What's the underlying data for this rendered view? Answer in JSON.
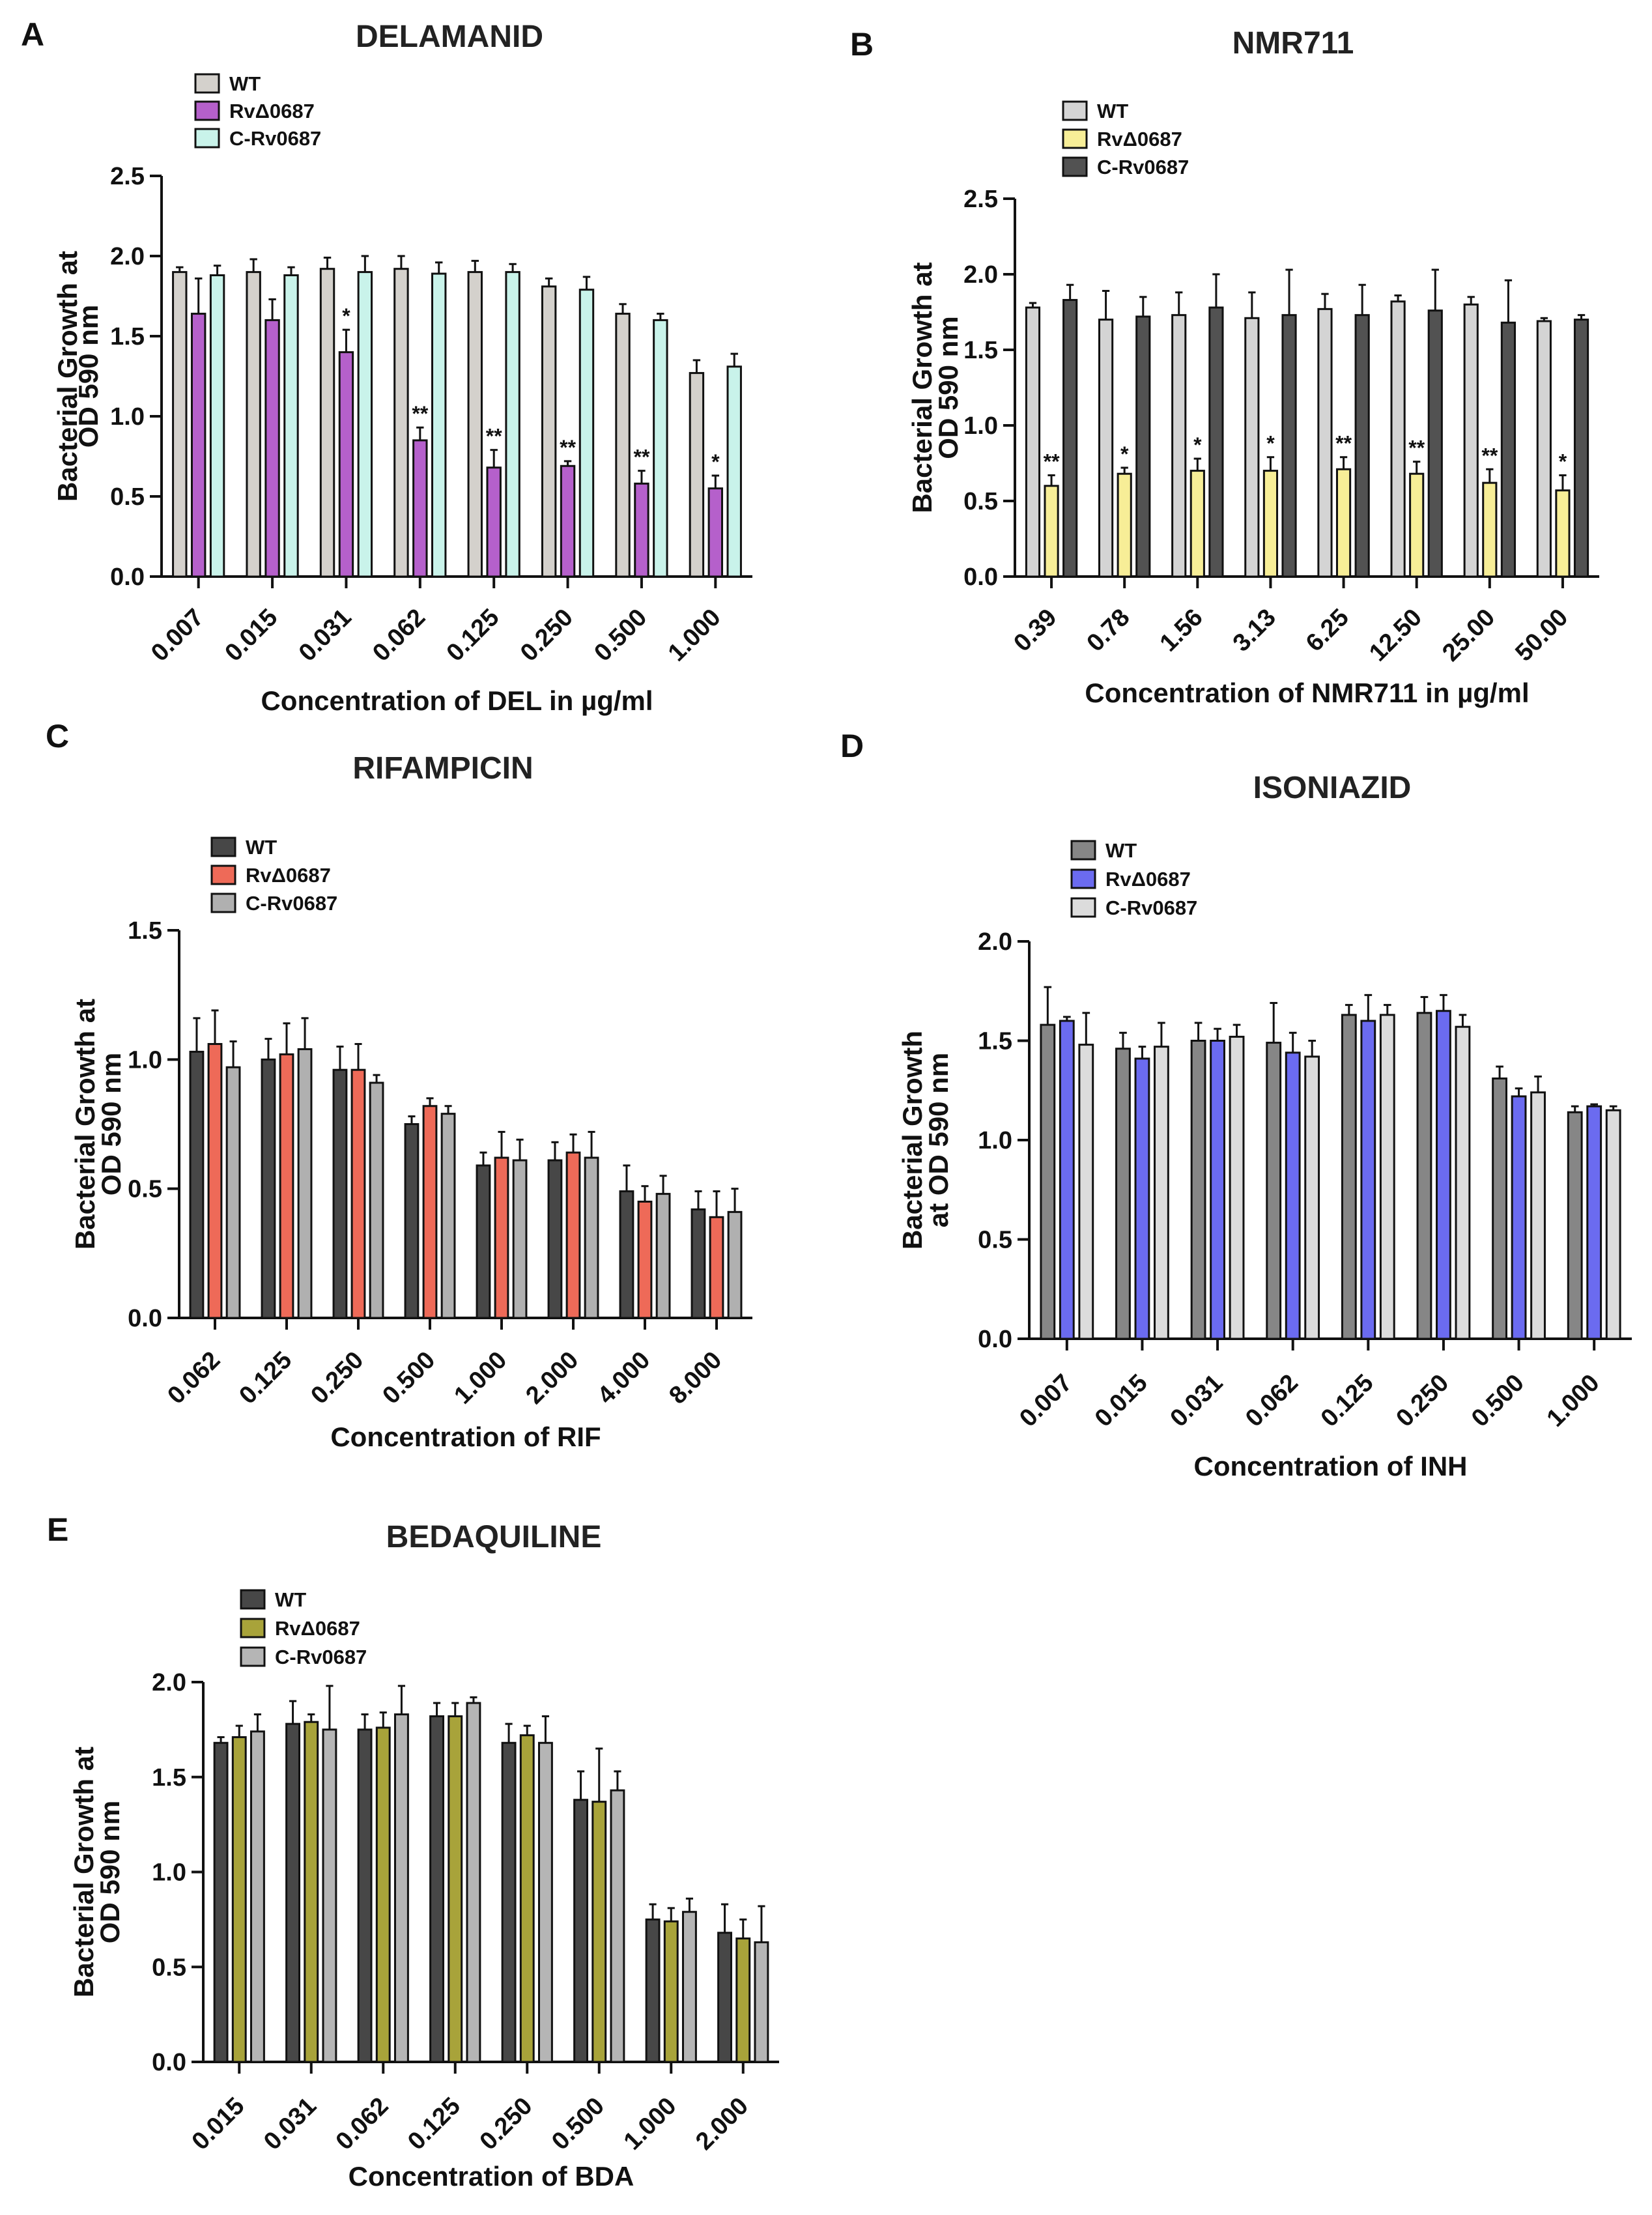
{
  "chart_data": [
    {
      "panel": "A",
      "type": "bar",
      "title": "DELAMANID",
      "xlabel": "Concentration of DEL in µg/ml",
      "ylabel": [
        "Bacterial Growth at",
        "OD 590 nm"
      ],
      "ylim": [
        0,
        2.5
      ],
      "yticks": [
        "0.0",
        "0.5",
        "1.0",
        "1.5",
        "2.0",
        "2.5"
      ],
      "categories": [
        "0.007",
        "0.015",
        "0.031",
        "0.062",
        "0.125",
        "0.250",
        "0.500",
        "1.000"
      ],
      "legend_position": "top-left",
      "series": [
        {
          "name": "WT",
          "color": "#d4d1cc",
          "values": [
            1.9,
            1.9,
            1.92,
            1.92,
            1.9,
            1.81,
            1.64,
            1.27
          ],
          "errors": [
            0.03,
            0.08,
            0.07,
            0.08,
            0.07,
            0.05,
            0.06,
            0.08
          ]
        },
        {
          "name": "RvΔ0687",
          "color": "#b560cb",
          "values": [
            1.64,
            1.6,
            1.4,
            0.85,
            0.68,
            0.69,
            0.58,
            0.55
          ],
          "errors": [
            0.22,
            0.13,
            0.14,
            0.08,
            0.11,
            0.03,
            0.08,
            0.08
          ]
        },
        {
          "name": "C-Rv0687",
          "color": "#c9f3ea",
          "values": [
            1.88,
            1.88,
            1.9,
            1.89,
            1.9,
            1.79,
            1.6,
            1.31
          ],
          "errors": [
            0.06,
            0.05,
            0.1,
            0.07,
            0.05,
            0.08,
            0.04,
            0.08
          ]
        }
      ],
      "significance": [
        "",
        "",
        "*",
        "**",
        "**",
        "**",
        "**",
        "*"
      ]
    },
    {
      "panel": "B",
      "type": "bar",
      "title": "NMR711",
      "xlabel": "Concentration of NMR711 in µg/ml",
      "ylabel": [
        "Bacterial Growth at",
        "OD 590 nm"
      ],
      "ylim": [
        0,
        2.5
      ],
      "yticks": [
        "0.0",
        "0.5",
        "1.0",
        "1.5",
        "2.0",
        "2.5"
      ],
      "categories": [
        "0.39",
        "0.78",
        "1.56",
        "3.13",
        "6.25",
        "12.50",
        "25.00",
        "50.00"
      ],
      "legend_position": "top-left",
      "series": [
        {
          "name": "WT",
          "color": "#d4d4d4",
          "values": [
            1.78,
            1.7,
            1.73,
            1.71,
            1.77,
            1.82,
            1.8,
            1.69
          ],
          "errors": [
            0.03,
            0.19,
            0.15,
            0.17,
            0.1,
            0.04,
            0.05,
            0.02
          ]
        },
        {
          "name": "RvΔ0687",
          "color": "#f7ee97",
          "values": [
            0.6,
            0.68,
            0.7,
            0.7,
            0.71,
            0.68,
            0.62,
            0.57
          ],
          "errors": [
            0.07,
            0.04,
            0.08,
            0.09,
            0.08,
            0.08,
            0.09,
            0.1
          ]
        },
        {
          "name": "C-Rv0687",
          "color": "#525252",
          "values": [
            1.83,
            1.72,
            1.78,
            1.73,
            1.73,
            1.76,
            1.68,
            1.7
          ],
          "errors": [
            0.1,
            0.13,
            0.22,
            0.3,
            0.2,
            0.27,
            0.28,
            0.03
          ]
        }
      ],
      "significance": [
        "**",
        "*",
        "*",
        "*",
        "**",
        "**",
        "**",
        "*"
      ]
    },
    {
      "panel": "C",
      "type": "bar",
      "title": "RIFAMPICIN",
      "xlabel": "Concentration of RIF",
      "ylabel": [
        "Bacterial Growth at",
        "OD 590 nm"
      ],
      "ylim": [
        0,
        1.5
      ],
      "yticks": [
        "0.0",
        "0.5",
        "1.0",
        "1.5"
      ],
      "categories": [
        "0.062",
        "0.125",
        "0.250",
        "0.500",
        "1.000",
        "2.000",
        "4.000",
        "8.000"
      ],
      "legend_position": "top-left",
      "series": [
        {
          "name": "WT",
          "color": "#474747",
          "values": [
            1.03,
            1.0,
            0.96,
            0.75,
            0.59,
            0.61,
            0.49,
            0.42
          ],
          "errors": [
            0.13,
            0.08,
            0.09,
            0.03,
            0.05,
            0.07,
            0.1,
            0.07
          ]
        },
        {
          "name": "RvΔ0687",
          "color": "#ee6a58",
          "values": [
            1.06,
            1.02,
            0.96,
            0.82,
            0.62,
            0.64,
            0.45,
            0.39
          ],
          "errors": [
            0.13,
            0.12,
            0.1,
            0.03,
            0.1,
            0.07,
            0.06,
            0.1
          ]
        },
        {
          "name": "C-Rv0687",
          "color": "#b0b0b0",
          "values": [
            0.97,
            1.04,
            0.91,
            0.79,
            0.61,
            0.62,
            0.48,
            0.41
          ],
          "errors": [
            0.1,
            0.12,
            0.03,
            0.03,
            0.08,
            0.1,
            0.07,
            0.09
          ]
        }
      ],
      "significance": [
        "",
        "",
        "",
        "",
        "",
        "",
        "",
        ""
      ]
    },
    {
      "panel": "D",
      "type": "bar",
      "title": "ISONIAZID",
      "xlabel": "Concentration of INH",
      "ylabel": [
        "Bacterial Growth",
        "at OD 590 nm"
      ],
      "ylim": [
        0,
        2.0
      ],
      "yticks": [
        "0.0",
        "0.5",
        "1.0",
        "1.5",
        "2.0"
      ],
      "categories": [
        "0.007",
        "0.015",
        "0.031",
        "0.062",
        "0.125",
        "0.250",
        "0.500",
        "1.000"
      ],
      "legend_position": "top-left",
      "series": [
        {
          "name": "WT",
          "color": "#868686",
          "values": [
            1.58,
            1.46,
            1.5,
            1.49,
            1.63,
            1.64,
            1.31,
            1.14
          ],
          "errors": [
            0.19,
            0.08,
            0.09,
            0.2,
            0.05,
            0.08,
            0.06,
            0.03
          ]
        },
        {
          "name": "RvΔ0687",
          "color": "#6b6bf0",
          "values": [
            1.6,
            1.41,
            1.5,
            1.44,
            1.6,
            1.65,
            1.22,
            1.17
          ],
          "errors": [
            0.02,
            0.06,
            0.06,
            0.1,
            0.13,
            0.08,
            0.04,
            0.01
          ]
        },
        {
          "name": "C-Rv0687",
          "color": "#dcdcdc",
          "values": [
            1.48,
            1.47,
            1.52,
            1.42,
            1.63,
            1.57,
            1.24,
            1.15
          ],
          "errors": [
            0.16,
            0.12,
            0.06,
            0.08,
            0.05,
            0.06,
            0.08,
            0.02
          ]
        }
      ],
      "significance": [
        "",
        "",
        "",
        "",
        "",
        "",
        "",
        ""
      ]
    },
    {
      "panel": "E",
      "type": "bar",
      "title": "BEDAQUILINE",
      "xlabel": "Concentration of BDA",
      "ylabel": [
        "Bacterial Growth at",
        "OD 590 nm"
      ],
      "ylim": [
        0,
        2.0
      ],
      "yticks": [
        "0.0",
        "0.5",
        "1.0",
        "1.5",
        "2.0"
      ],
      "categories": [
        "0.015",
        "0.031",
        "0.062",
        "0.125",
        "0.250",
        "0.500",
        "1.000",
        "2.000"
      ],
      "legend_position": "top-left",
      "series": [
        {
          "name": "WT",
          "color": "#474747",
          "values": [
            1.68,
            1.78,
            1.75,
            1.82,
            1.68,
            1.38,
            0.75,
            0.68
          ],
          "errors": [
            0.03,
            0.12,
            0.08,
            0.07,
            0.1,
            0.15,
            0.08,
            0.15
          ]
        },
        {
          "name": "RvΔ0687",
          "color": "#a8a33a",
          "values": [
            1.71,
            1.79,
            1.76,
            1.82,
            1.72,
            1.37,
            0.74,
            0.65
          ],
          "errors": [
            0.06,
            0.04,
            0.08,
            0.07,
            0.05,
            0.28,
            0.07,
            0.1
          ]
        },
        {
          "name": "C-Rv0687",
          "color": "#b5b5b5",
          "values": [
            1.74,
            1.75,
            1.83,
            1.89,
            1.68,
            1.43,
            0.79,
            0.63
          ],
          "errors": [
            0.09,
            0.23,
            0.15,
            0.03,
            0.14,
            0.1,
            0.07,
            0.19
          ]
        }
      ],
      "significance": [
        "",
        "",
        "",
        "",
        "",
        "",
        "",
        ""
      ]
    }
  ]
}
